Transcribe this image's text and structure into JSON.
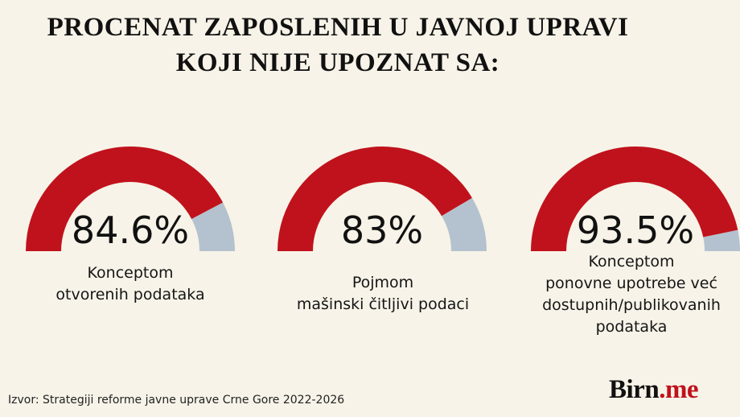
{
  "title_line1": "PROCENAT ZAPOSLENIH U JAVNOJ UPRAVI",
  "title_line2": "KOJI NIJE UPOZNAT SA:",
  "chart_data": {
    "type": "gauge",
    "unit": "%",
    "max": 100,
    "gauges": [
      {
        "value": 84.6,
        "label": "84.6%",
        "caption": [
          "Konceptom",
          "otvorenih podataka"
        ]
      },
      {
        "value": 83,
        "label": "83%",
        "caption": [
          "Pojmom",
          "mašinski čitljivi podaci"
        ]
      },
      {
        "value": 93.5,
        "label": "93.5%",
        "caption": [
          "Konceptom",
          "ponovne upotrebe već",
          "dostupnih/publikovanih",
          "podataka"
        ]
      }
    ],
    "colors": {
      "filled": "#c0121c",
      "remaining": "#b4c2cf"
    }
  },
  "source": "Izvor: Strategiji reforme javne uprave Crne Gore 2022-2026",
  "brand": {
    "name": "Birn",
    "dot": ".",
    "tld": "me"
  }
}
